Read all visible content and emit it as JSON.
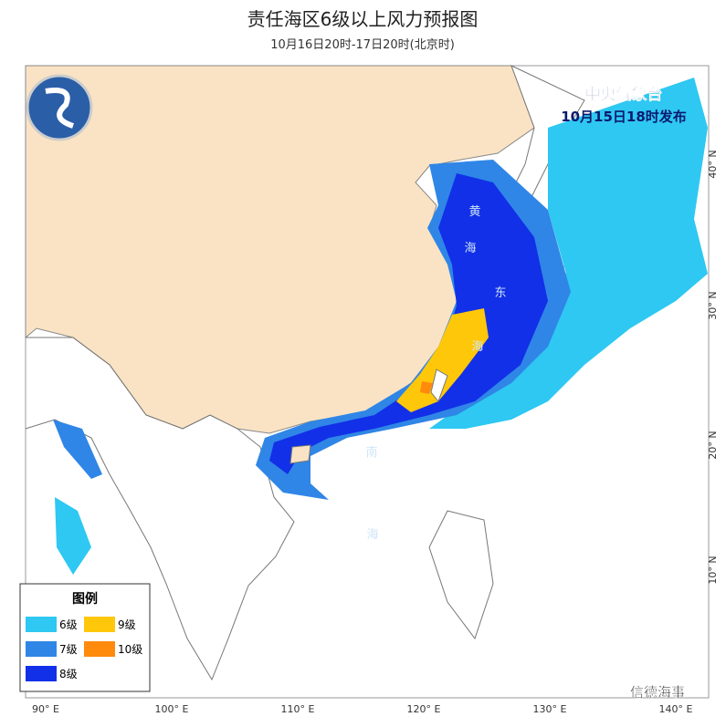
{
  "header": {
    "title": "责任海区6级以上风力预报图",
    "subtitle": "10月16日20时-17日20时(北京时)"
  },
  "issuer": {
    "name": "中央气象台",
    "time": "10月15日18时发布"
  },
  "legend": {
    "title": "图例",
    "items": [
      {
        "label": "6级",
        "color": "#2ec8f2"
      },
      {
        "label": "9级",
        "color": "#ffc70a"
      },
      {
        "label": "7级",
        "color": "#2f86e6"
      },
      {
        "label": "10级",
        "color": "#ff8a0c"
      },
      {
        "label": "8级",
        "color": "#1230e8"
      }
    ]
  },
  "longitude_labels": [
    "90° E",
    "100° E",
    "110° E",
    "120° E",
    "130° E",
    "140° E"
  ],
  "latitude_labels": [
    "40° N",
    "30° N",
    "20° N",
    "10° N"
  ],
  "sea_labels": [
    "黄",
    "海",
    "东",
    "海",
    "南",
    "海"
  ],
  "watermark": "信德海事"
}
